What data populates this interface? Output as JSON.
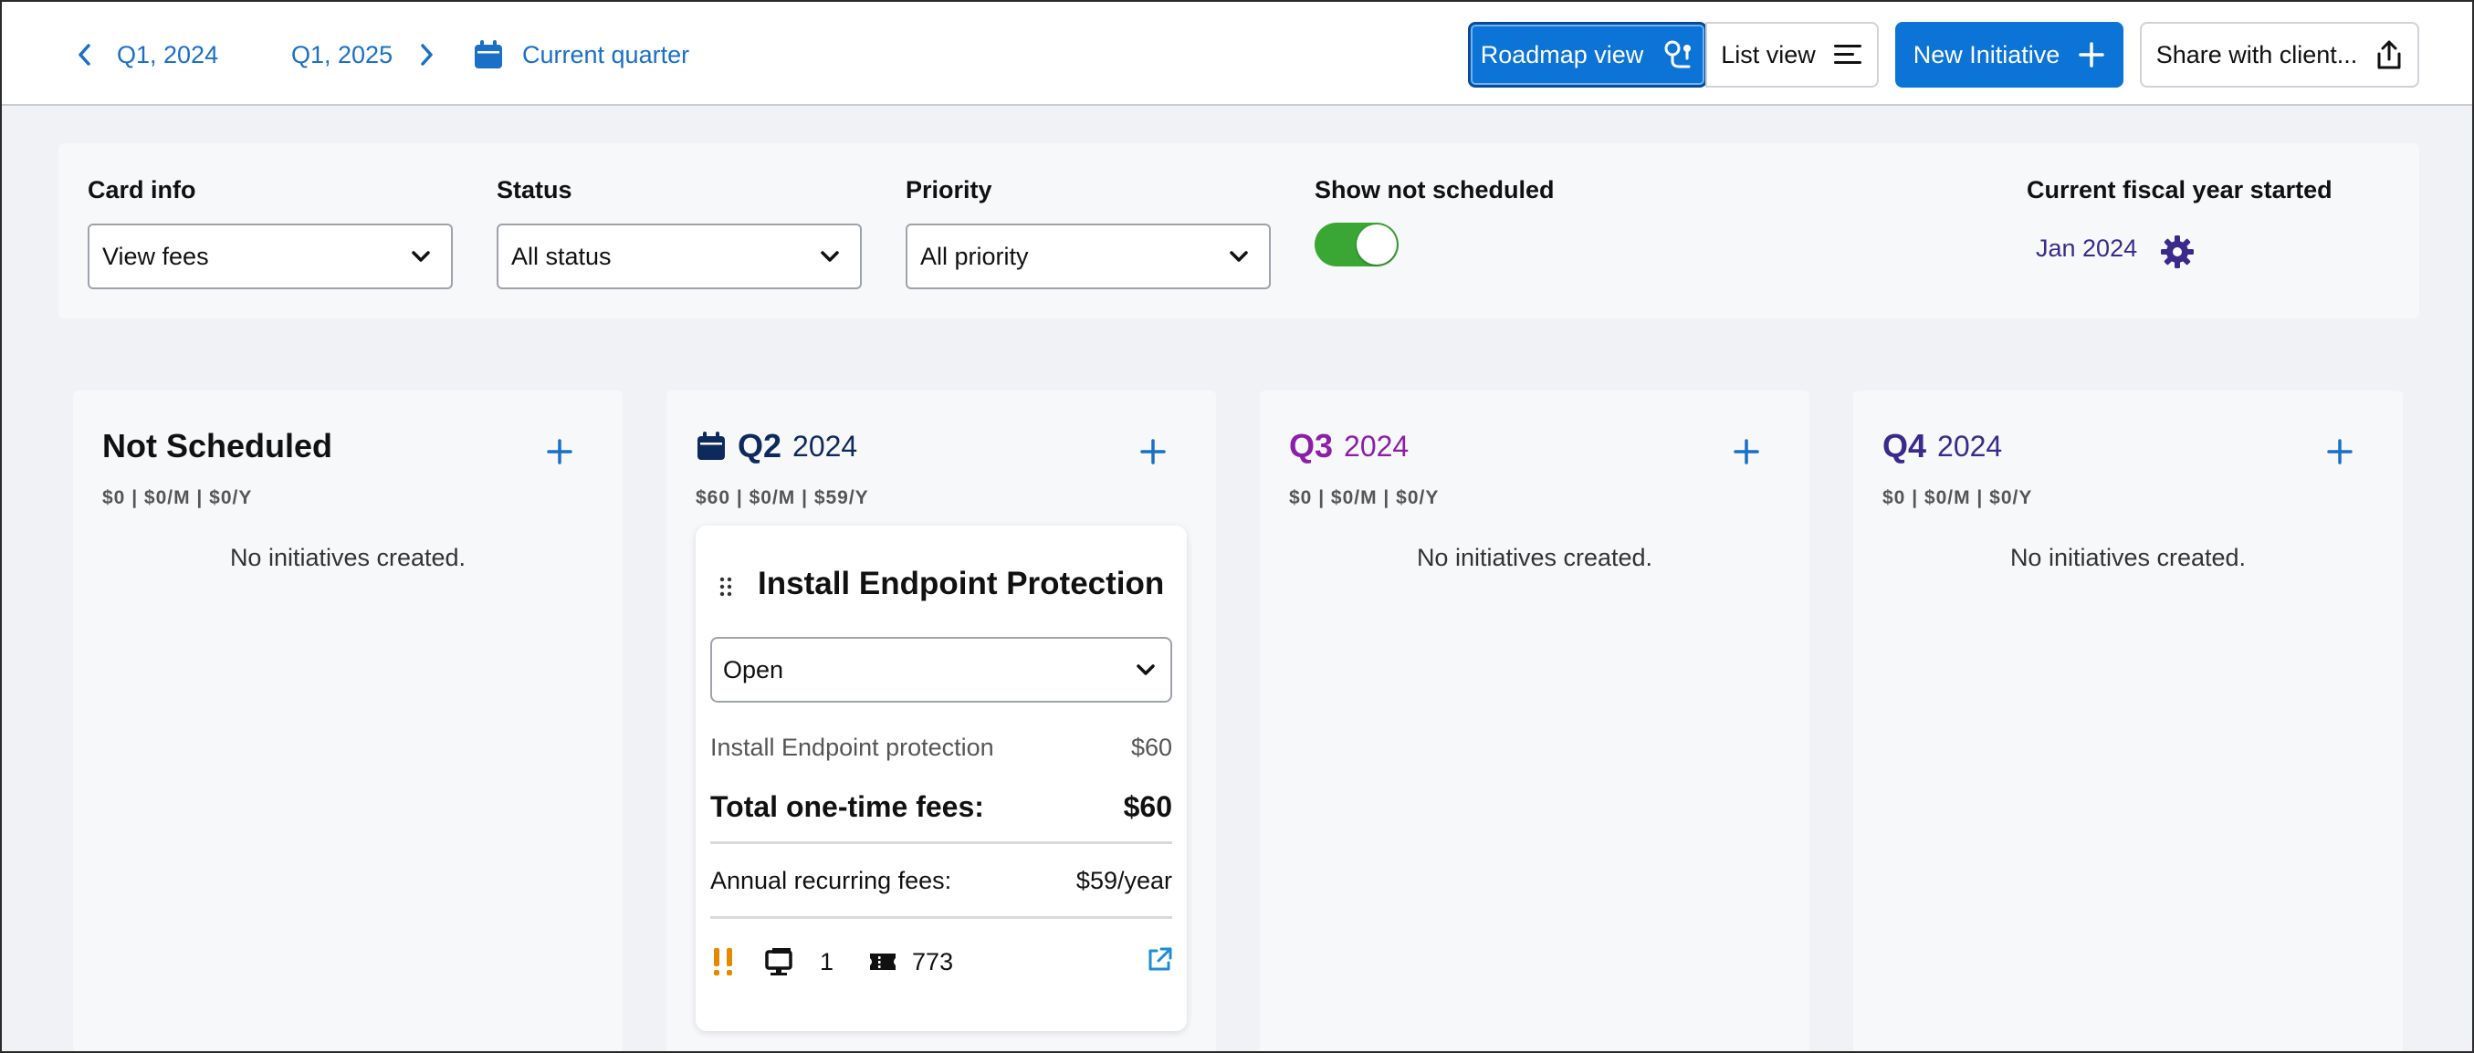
{
  "topbar": {
    "prev_label": "Q1, 2024",
    "next_label": "Q1, 2025",
    "current_label": "Current quarter",
    "roadmap_view": "Roadmap view",
    "list_view": "List view",
    "new_initiative": "New Initiative",
    "share": "Share with client..."
  },
  "filters": {
    "card_info": {
      "label": "Card info",
      "value": "View fees"
    },
    "status": {
      "label": "Status",
      "value": "All status"
    },
    "priority": {
      "label": "Priority",
      "value": "All priority"
    },
    "show_not_scheduled": {
      "label": "Show not scheduled",
      "on": true
    },
    "fiscal": {
      "label": "Current fiscal year started",
      "value": "Jan 2024"
    }
  },
  "columns": [
    {
      "title": "Not Scheduled",
      "year": "",
      "fees": "$0 | $0/M | $0/Y",
      "empty": "No initiatives created.",
      "title_color": "#111111"
    },
    {
      "title": "Q2",
      "year": "2024",
      "fees": "$60 | $0/M | $59/Y",
      "empty": "",
      "title_color": "#0d2a5c",
      "current": true
    },
    {
      "title": "Q3",
      "year": "2024",
      "fees": "$0 | $0/M | $0/Y",
      "empty": "No initiatives created.",
      "title_color": "#8b1fa9"
    },
    {
      "title": "Q4",
      "year": "2024",
      "fees": "$0 | $0/M | $0/Y",
      "empty": "No initiatives created.",
      "title_color": "#3b2a8c"
    }
  ],
  "card": {
    "title": "Install Endpoint Protection",
    "status": "Open",
    "line_item": "Install Endpoint protection",
    "line_amount": "$60",
    "total_label": "Total one-time fees:",
    "total_amount": "$60",
    "annual_label": "Annual recurring fees:",
    "annual_amount": "$59/year",
    "device_count": "1",
    "ticket_number": "773"
  },
  "colors": {
    "primary": "#0b74d6",
    "link": "#1a6fc7",
    "toggle_on": "#3aa734",
    "priority_icon": "#e58a00"
  }
}
